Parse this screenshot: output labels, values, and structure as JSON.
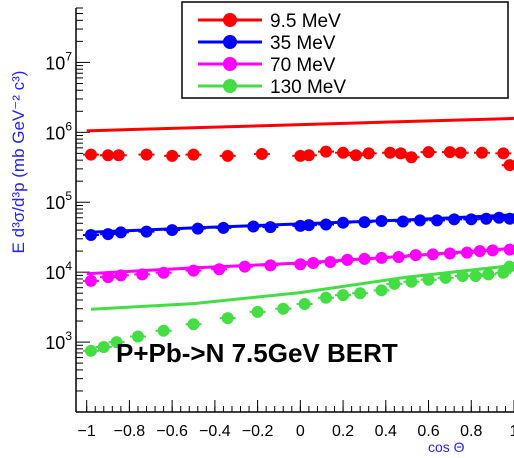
{
  "chart_data": {
    "type": "scatter",
    "annotation": "P+Pb->N 7.5GeV BERT",
    "xlabel": "cos Θ",
    "ylabel": "E d³σ/d³p (mb GeV⁻² c³)",
    "xlim": [
      -1.05,
      1.0
    ],
    "ylim": [
      100,
      60000000
    ],
    "yscale": "log",
    "x_ticks": [
      "−1",
      "−0.8",
      "−0.6",
      "−0.4",
      "−0.2",
      "0",
      "0.2",
      "0.4",
      "0.6",
      "0.8",
      "1"
    ],
    "x_tick_values": [
      -1,
      -0.8,
      -0.6,
      -0.4,
      -0.2,
      0,
      0.2,
      0.4,
      0.6,
      0.8,
      1
    ],
    "y_ticks": [
      {
        "value": 1000,
        "mantissa": "10",
        "exp": "3"
      },
      {
        "value": 10000,
        "mantissa": "10",
        "exp": "4"
      },
      {
        "value": 100000,
        "mantissa": "10",
        "exp": "5"
      },
      {
        "value": 1000000,
        "mantissa": "10",
        "exp": "6"
      },
      {
        "value": 10000000,
        "mantissa": "10",
        "exp": "7"
      }
    ],
    "legend_position": "top-right",
    "series": [
      {
        "name": "9.5 MeV",
        "color": "#ff0000",
        "points_x": [
          -0.98,
          -0.9,
          -0.85,
          -0.72,
          -0.6,
          -0.5,
          -0.34,
          -0.18,
          0.0,
          0.04,
          0.12,
          0.2,
          0.26,
          0.32,
          0.42,
          0.47,
          0.52,
          0.6,
          0.7,
          0.75,
          0.85,
          0.95,
          0.98
        ],
        "points_y": [
          480000,
          470000,
          470000,
          480000,
          460000,
          480000,
          460000,
          490000,
          460000,
          470000,
          530000,
          510000,
          470000,
          500000,
          510000,
          500000,
          440000,
          520000,
          520000,
          510000,
          510000,
          500000,
          340000
        ],
        "model_x": [
          -1.0,
          1.0
        ],
        "model_y": [
          1050000,
          1580000
        ]
      },
      {
        "name": "35 MeV",
        "color": "#0000ff",
        "points_x": [
          -0.98,
          -0.9,
          -0.84,
          -0.72,
          -0.6,
          -0.48,
          -0.36,
          -0.22,
          -0.14,
          0.0,
          0.04,
          0.12,
          0.2,
          0.3,
          0.38,
          0.48,
          0.56,
          0.64,
          0.72,
          0.8,
          0.87,
          0.93,
          0.98
        ],
        "points_y": [
          34000,
          35000,
          37000,
          38000,
          40000,
          42000,
          43000,
          45000,
          44000,
          46000,
          47000,
          48000,
          51000,
          52000,
          54000,
          53000,
          55000,
          55000,
          57000,
          57000,
          58000,
          60000,
          58000
        ],
        "model_x": [
          -1.0,
          -0.5,
          0.0,
          0.5,
          1.0
        ],
        "model_y": [
          37000,
          43000,
          49000,
          56000,
          66000
        ]
      },
      {
        "name": "70 MeV",
        "color": "#ff00ff",
        "points_x": [
          -0.98,
          -0.9,
          -0.84,
          -0.74,
          -0.64,
          -0.5,
          -0.38,
          -0.26,
          -0.14,
          0.0,
          0.06,
          0.14,
          0.22,
          0.3,
          0.38,
          0.46,
          0.54,
          0.62,
          0.7,
          0.78,
          0.84,
          0.9,
          0.98
        ],
        "points_y": [
          7500,
          8500,
          9000,
          9300,
          9800,
          10500,
          11000,
          12000,
          12500,
          13000,
          13500,
          14000,
          15000,
          15500,
          16000,
          16500,
          17500,
          18000,
          18500,
          19000,
          20000,
          20500,
          21000
        ],
        "model_x": [
          -1.0,
          -0.5,
          0.0,
          0.5,
          1.0
        ],
        "model_y": [
          9500,
          11500,
          13500,
          17000,
          22000
        ]
      },
      {
        "name": "130 MeV",
        "color": "#44dd44",
        "points_x": [
          -0.98,
          -0.92,
          -0.86,
          -0.76,
          -0.64,
          -0.5,
          -0.34,
          -0.2,
          -0.08,
          0.02,
          0.12,
          0.2,
          0.28,
          0.38,
          0.44,
          0.52,
          0.6,
          0.68,
          0.76,
          0.82,
          0.88,
          0.95,
          0.98
        ],
        "points_y": [
          750,
          850,
          1000,
          1200,
          1450,
          1800,
          2200,
          2700,
          3000,
          3500,
          4300,
          4700,
          5000,
          5500,
          6800,
          7300,
          7800,
          8300,
          8800,
          8800,
          9300,
          9800,
          12000
        ],
        "model_x": [
          -0.98,
          -0.5,
          0.0,
          0.5,
          1.0
        ],
        "model_y": [
          2950,
          3550,
          5100,
          8500,
          12500
        ]
      }
    ]
  }
}
